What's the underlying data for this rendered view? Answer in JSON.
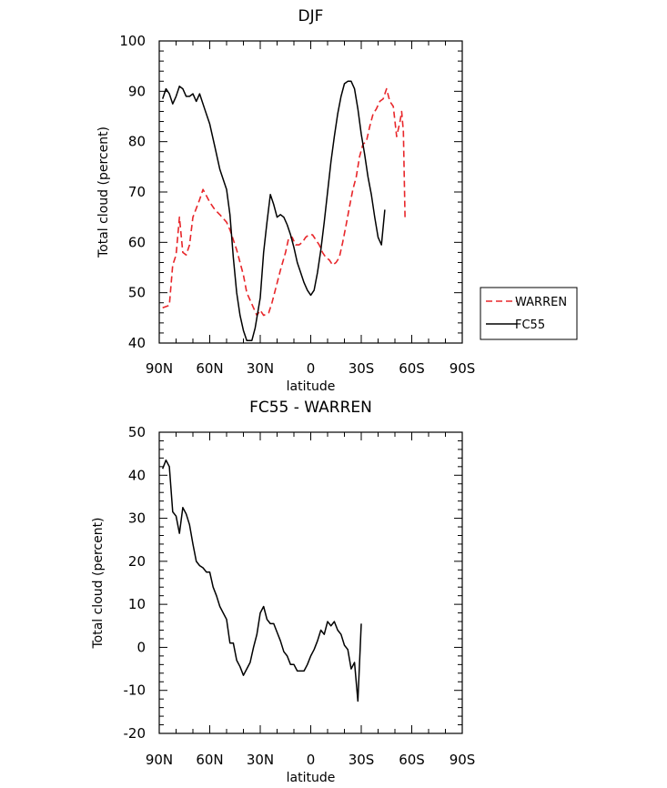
{
  "chart_data": [
    {
      "type": "line",
      "title": "DJF",
      "xlabel": "latitude",
      "ylabel": "Total cloud (percent)",
      "x_ticks": [
        "90N",
        "60N",
        "30N",
        "0",
        "30S",
        "60S",
        "90S"
      ],
      "x_tick_values": [
        -90,
        -60,
        -30,
        0,
        30,
        60,
        90
      ],
      "xlim": [
        -90,
        90
      ],
      "ylim": [
        40,
        100
      ],
      "y_ticks": [
        "40",
        "50",
        "60",
        "70",
        "80",
        "90",
        "100"
      ],
      "y_tick_values": [
        40,
        50,
        60,
        70,
        80,
        90,
        100
      ],
      "legend": {
        "placement": "right",
        "entries": [
          "WARREN",
          "FC55"
        ]
      },
      "series": [
        {
          "name": "WARREN",
          "color": "#e8262a",
          "dash": "dashed",
          "points": [
            [
              -88,
              47.0
            ],
            [
              -84,
              47.5
            ],
            [
              -82,
              55.5
            ],
            [
              -80,
              57.5
            ],
            [
              -78,
              65.0
            ],
            [
              -76,
              58.0
            ],
            [
              -74,
              57.5
            ],
            [
              -72,
              59.5
            ],
            [
              -70,
              65.0
            ],
            [
              -66,
              68.5
            ],
            [
              -64,
              70.5
            ],
            [
              -60,
              68.0
            ],
            [
              -57,
              66.5
            ],
            [
              -54,
              65.5
            ],
            [
              -50,
              64.0
            ],
            [
              -48,
              62.5
            ],
            [
              -44,
              58.5
            ],
            [
              -40,
              53.5
            ],
            [
              -38,
              50.0
            ],
            [
              -34,
              47.0
            ],
            [
              -32,
              45.5
            ],
            [
              -30,
              46.5
            ],
            [
              -28,
              45.5
            ],
            [
              -25,
              46.0
            ],
            [
              -23,
              48.0
            ],
            [
              -18,
              54.5
            ],
            [
              -15,
              58.0
            ],
            [
              -13,
              61.0
            ],
            [
              -11,
              61.0
            ],
            [
              -9,
              59.5
            ],
            [
              -7,
              59.5
            ],
            [
              -5,
              60.0
            ],
            [
              -3,
              61.0
            ],
            [
              -1,
              61.5
            ],
            [
              1,
              61.5
            ],
            [
              3,
              60.5
            ],
            [
              5,
              59.5
            ],
            [
              7,
              58.0
            ],
            [
              9,
              57.0
            ],
            [
              11,
              56.5
            ],
            [
              13,
              55.5
            ],
            [
              15,
              56.0
            ],
            [
              17,
              57.0
            ],
            [
              19,
              60.0
            ],
            [
              21,
              63.5
            ],
            [
              23,
              67.0
            ],
            [
              25,
              70.5
            ],
            [
              27,
              73.0
            ],
            [
              29,
              77.0
            ],
            [
              31,
              79.5
            ],
            [
              33,
              80.0
            ],
            [
              35,
              83.0
            ],
            [
              37,
              85.5
            ],
            [
              39,
              86.5
            ],
            [
              41,
              88.0
            ],
            [
              43,
              88.5
            ],
            [
              45,
              90.5
            ],
            [
              47,
              88.0
            ],
            [
              49,
              87.0
            ],
            [
              51,
              81.0
            ],
            [
              53,
              84.0
            ],
            [
              54,
              86.0
            ],
            [
              55,
              82.0
            ],
            [
              56,
              65.0
            ]
          ]
        },
        {
          "name": "FC55",
          "color": "#000000",
          "dash": "solid",
          "points": [
            [
              -88,
              88.5
            ],
            [
              -86,
              90.5
            ],
            [
              -84,
              89.5
            ],
            [
              -82,
              87.5
            ],
            [
              -80,
              89.0
            ],
            [
              -78,
              91.0
            ],
            [
              -76,
              90.5
            ],
            [
              -74,
              89.0
            ],
            [
              -72,
              89.0
            ],
            [
              -70,
              89.5
            ],
            [
              -68,
              88.0
            ],
            [
              -66,
              89.5
            ],
            [
              -63,
              86.5
            ],
            [
              -60,
              83.5
            ],
            [
              -57,
              79.0
            ],
            [
              -54,
              74.5
            ],
            [
              -50,
              70.5
            ],
            [
              -48,
              65.5
            ],
            [
              -46,
              57.0
            ],
            [
              -44,
              50.0
            ],
            [
              -42,
              45.5
            ],
            [
              -40,
              42.5
            ],
            [
              -38,
              40.5
            ],
            [
              -35,
              40.5
            ],
            [
              -33,
              43.0
            ],
            [
              -30,
              49.0
            ],
            [
              -28,
              58.0
            ],
            [
              -26,
              64.0
            ],
            [
              -24,
              69.5
            ],
            [
              -22,
              67.5
            ],
            [
              -20,
              65.0
            ],
            [
              -18,
              65.5
            ],
            [
              -16,
              65.0
            ],
            [
              -14,
              63.5
            ],
            [
              -12,
              61.5
            ],
            [
              -10,
              59.0
            ],
            [
              -8,
              56.0
            ],
            [
              -6,
              54.0
            ],
            [
              -4,
              52.0
            ],
            [
              -2,
              50.5
            ],
            [
              0,
              49.5
            ],
            [
              2,
              50.5
            ],
            [
              4,
              54.0
            ],
            [
              6,
              58.5
            ],
            [
              8,
              64.0
            ],
            [
              10,
              70.0
            ],
            [
              12,
              76.0
            ],
            [
              14,
              81.0
            ],
            [
              16,
              85.5
            ],
            [
              18,
              89.0
            ],
            [
              20,
              91.5
            ],
            [
              22,
              92.0
            ],
            [
              24,
              92.0
            ],
            [
              26,
              90.5
            ],
            [
              28,
              86.5
            ],
            [
              30,
              81.5
            ],
            [
              32,
              77.5
            ],
            [
              34,
              73.0
            ],
            [
              36,
              69.5
            ],
            [
              38,
              65.0
            ],
            [
              40,
              61.0
            ],
            [
              42,
              59.5
            ],
            [
              44,
              66.5
            ]
          ]
        }
      ]
    },
    {
      "type": "line",
      "title": "FC55 - WARREN",
      "xlabel": "latitude",
      "ylabel": "Total cloud (percent)",
      "x_ticks": [
        "90N",
        "60N",
        "30N",
        "0",
        "30S",
        "60S",
        "90S"
      ],
      "x_tick_values": [
        -90,
        -60,
        -30,
        0,
        30,
        60,
        90
      ],
      "xlim": [
        -90,
        90
      ],
      "ylim": [
        -20,
        50
      ],
      "y_ticks": [
        "-20",
        "-10",
        "0",
        "10",
        "20",
        "30",
        "40",
        "50"
      ],
      "y_tick_values": [
        -20,
        -10,
        0,
        10,
        20,
        30,
        40,
        50
      ],
      "series": [
        {
          "color": "#000000",
          "dash": "solid",
          "points": [
            [
              -88,
              41.5
            ],
            [
              -86,
              43.5
            ],
            [
              -84,
              42.0
            ],
            [
              -82,
              31.5
            ],
            [
              -80,
              30.5
            ],
            [
              -78,
              26.5
            ],
            [
              -76,
              32.5
            ],
            [
              -74,
              31.0
            ],
            [
              -72,
              28.5
            ],
            [
              -70,
              24.0
            ],
            [
              -68,
              20.0
            ],
            [
              -66,
              19.0
            ],
            [
              -64,
              18.5
            ],
            [
              -62,
              17.5
            ],
            [
              -60,
              17.5
            ],
            [
              -58,
              14.0
            ],
            [
              -56,
              12.0
            ],
            [
              -54,
              9.5
            ],
            [
              -52,
              8.0
            ],
            [
              -50,
              6.5
            ],
            [
              -48,
              1.0
            ],
            [
              -46,
              1.0
            ],
            [
              -44,
              -3.0
            ],
            [
              -42,
              -4.5
            ],
            [
              -40,
              -6.5
            ],
            [
              -38,
              -5.0
            ],
            [
              -36,
              -3.5
            ],
            [
              -34,
              0.0
            ],
            [
              -32,
              3.0
            ],
            [
              -30,
              8.0
            ],
            [
              -28,
              9.5
            ],
            [
              -26,
              6.5
            ],
            [
              -24,
              5.5
            ],
            [
              -22,
              5.5
            ],
            [
              -20,
              3.5
            ],
            [
              -18,
              1.5
            ],
            [
              -16,
              -1.0
            ],
            [
              -14,
              -2.0
            ],
            [
              -12,
              -4.0
            ],
            [
              -10,
              -4.0
            ],
            [
              -8,
              -5.5
            ],
            [
              -6,
              -5.5
            ],
            [
              -4,
              -5.5
            ],
            [
              -2,
              -4.0
            ],
            [
              0,
              -2.0
            ],
            [
              2,
              -0.5
            ],
            [
              4,
              1.5
            ],
            [
              6,
              4.0
            ],
            [
              8,
              3.0
            ],
            [
              10,
              6.0
            ],
            [
              12,
              5.0
            ],
            [
              14,
              6.0
            ],
            [
              16,
              4.0
            ],
            [
              18,
              3.0
            ],
            [
              20,
              0.5
            ],
            [
              22,
              -0.5
            ],
            [
              24,
              -5.0
            ],
            [
              26,
              -3.5
            ],
            [
              28,
              -12.5
            ],
            [
              30,
              5.5
            ]
          ]
        }
      ]
    }
  ]
}
